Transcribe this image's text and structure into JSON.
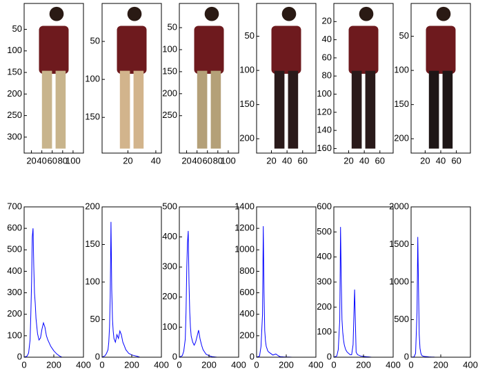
{
  "chart_data": [
    {
      "type": "image",
      "xlim": [
        6,
        120
      ],
      "ylim": [
        -10,
        337
      ],
      "y_reversed": true,
      "xticks": [
        20,
        40,
        60,
        80,
        100
      ],
      "yticks": [
        50,
        100,
        150,
        200,
        250,
        300
      ]
    },
    {
      "type": "image",
      "xlim": [
        1.5,
        44
      ],
      "ylim": [
        0,
        197
      ],
      "y_reversed": true,
      "xticks": [
        20,
        40
      ],
      "yticks": [
        50,
        100,
        150
      ]
    },
    {
      "type": "image",
      "xlim": [
        6,
        120
      ],
      "ylim": [
        -5,
        335
      ],
      "y_reversed": true,
      "xticks": [
        20,
        40,
        60,
        80,
        100
      ],
      "yticks": [
        50,
        100,
        150,
        200,
        250
      ]
    },
    {
      "type": "image",
      "xlim": [
        1,
        77
      ],
      "ylim": [
        2,
        221
      ],
      "y_reversed": true,
      "xticks": [
        20,
        40,
        60
      ],
      "yticks": [
        50,
        100,
        150,
        200
      ]
    },
    {
      "type": "image",
      "xlim": [
        1,
        77
      ],
      "ylim": [
        0,
        165
      ],
      "y_reversed": true,
      "xticks": [
        20,
        40,
        60
      ],
      "yticks": [
        20,
        40,
        60,
        80,
        100,
        120,
        140,
        160
      ]
    },
    {
      "type": "image",
      "xlim": [
        2,
        78
      ],
      "ylim": [
        2,
        221
      ],
      "y_reversed": true,
      "xticks": [
        20,
        40,
        60
      ],
      "yticks": [
        50,
        100,
        150,
        200
      ]
    },
    {
      "type": "line",
      "color": "#0000ff",
      "xlim": [
        0,
        400
      ],
      "ylim": [
        0,
        700
      ],
      "xticks": [
        0,
        200,
        400
      ],
      "yticks": [
        0,
        100,
        200,
        300,
        400,
        500,
        600,
        700
      ],
      "x": [
        0,
        20,
        30,
        40,
        45,
        50,
        55,
        60,
        65,
        70,
        75,
        80,
        90,
        100,
        110,
        120,
        130,
        140,
        150,
        160,
        180,
        200,
        220,
        240,
        255
      ],
      "values": [
        0,
        5,
        20,
        80,
        200,
        350,
        560,
        600,
        420,
        300,
        250,
        180,
        110,
        80,
        90,
        130,
        160,
        140,
        100,
        80,
        50,
        30,
        15,
        5,
        0
      ]
    },
    {
      "type": "line",
      "color": "#0000ff",
      "xlim": [
        0,
        400
      ],
      "ylim": [
        0,
        200
      ],
      "xticks": [
        0,
        200,
        400
      ],
      "yticks": [
        0,
        50,
        100,
        150,
        200
      ],
      "x": [
        0,
        20,
        30,
        40,
        45,
        50,
        55,
        60,
        65,
        70,
        75,
        80,
        90,
        100,
        110,
        120,
        130,
        140,
        150,
        160,
        180,
        200,
        220,
        240,
        255
      ],
      "values": [
        0,
        2,
        5,
        10,
        20,
        40,
        80,
        180,
        90,
        50,
        35,
        25,
        20,
        30,
        25,
        35,
        30,
        20,
        15,
        10,
        5,
        3,
        2,
        1,
        0
      ]
    },
    {
      "type": "line",
      "color": "#0000ff",
      "xlim": [
        0,
        400
      ],
      "ylim": [
        0,
        500
      ],
      "xticks": [
        0,
        200,
        400
      ],
      "yticks": [
        0,
        100,
        200,
        300,
        400,
        500
      ],
      "x": [
        0,
        20,
        30,
        40,
        45,
        50,
        55,
        60,
        65,
        70,
        75,
        80,
        90,
        100,
        110,
        120,
        130,
        140,
        150,
        160,
        180,
        200,
        220,
        240,
        255
      ],
      "values": [
        0,
        5,
        20,
        60,
        150,
        300,
        380,
        420,
        250,
        150,
        100,
        70,
        50,
        40,
        50,
        70,
        90,
        60,
        40,
        25,
        10,
        5,
        2,
        1,
        0
      ]
    },
    {
      "type": "line",
      "color": "#0000ff",
      "xlim": [
        0,
        400
      ],
      "ylim": [
        0,
        1400
      ],
      "xticks": [
        0,
        200,
        400
      ],
      "yticks": [
        0,
        200,
        400,
        600,
        800,
        1000,
        1200,
        1400
      ],
      "x": [
        0,
        20,
        30,
        40,
        45,
        50,
        55,
        60,
        65,
        70,
        75,
        80,
        90,
        100,
        110,
        120,
        130,
        140,
        150,
        160,
        180,
        200,
        220,
        240,
        255
      ],
      "values": [
        0,
        10,
        100,
        400,
        1220,
        600,
        250,
        150,
        100,
        80,
        60,
        50,
        40,
        30,
        20,
        25,
        30,
        20,
        10,
        5,
        3,
        2,
        1,
        0,
        0
      ]
    },
    {
      "type": "line",
      "color": "#0000ff",
      "xlim": [
        0,
        400
      ],
      "ylim": [
        0,
        600
      ],
      "xticks": [
        0,
        200,
        400
      ],
      "yticks": [
        0,
        100,
        200,
        300,
        400,
        500,
        600
      ],
      "x": [
        0,
        20,
        30,
        40,
        45,
        50,
        55,
        60,
        65,
        70,
        75,
        80,
        90,
        100,
        110,
        120,
        130,
        140,
        150,
        160,
        180,
        200,
        220,
        240,
        255
      ],
      "values": [
        0,
        5,
        30,
        150,
        520,
        300,
        150,
        100,
        70,
        50,
        40,
        30,
        20,
        15,
        10,
        10,
        50,
        270,
        20,
        10,
        5,
        3,
        2,
        1,
        0
      ]
    },
    {
      "type": "line",
      "color": "#0000ff",
      "xlim": [
        0,
        400
      ],
      "ylim": [
        0,
        2000
      ],
      "xticks": [
        0,
        200,
        400
      ],
      "yticks": [
        0,
        500,
        1000,
        1500,
        2000
      ],
      "x": [
        0,
        20,
        30,
        40,
        45,
        50,
        55,
        60,
        65,
        70,
        75,
        80,
        90,
        100,
        110,
        120,
        130,
        140,
        150,
        160,
        180,
        200,
        220,
        240,
        255
      ],
      "values": [
        0,
        5,
        50,
        600,
        1600,
        900,
        300,
        120,
        60,
        30,
        20,
        15,
        10,
        8,
        6,
        5,
        4,
        3,
        2,
        1,
        0,
        0,
        0,
        0,
        0
      ]
    }
  ]
}
